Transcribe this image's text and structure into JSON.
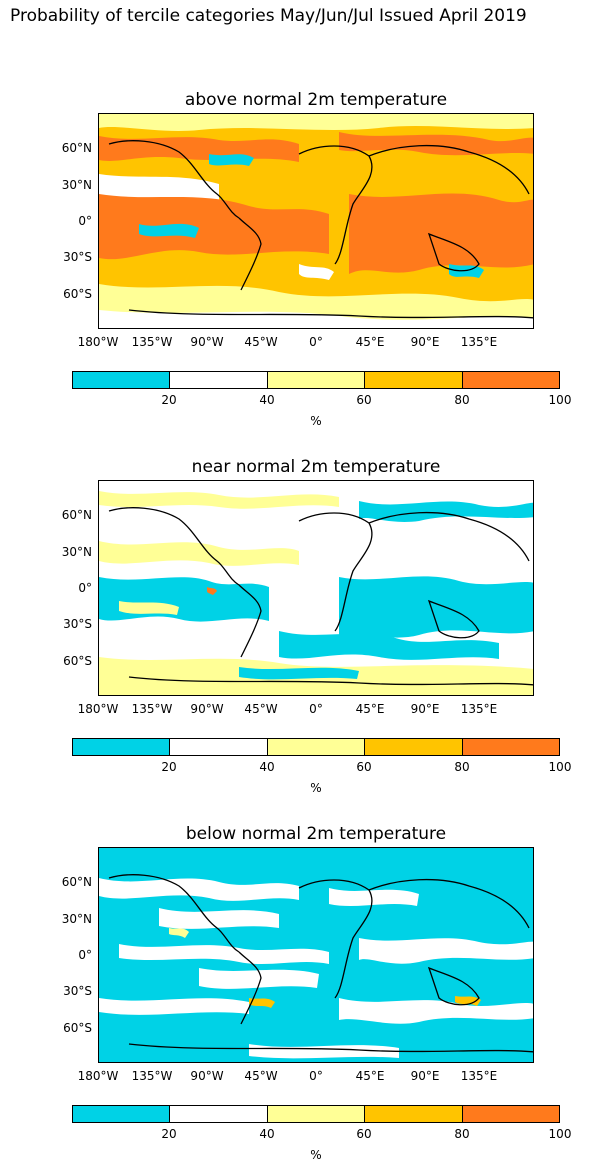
{
  "title": "Probability of tercile categories May/Jun/Jul Issued April 2019",
  "colorbar": {
    "colors": [
      "#00d2e6",
      "#ffffff",
      "#ffff96",
      "#ffc400",
      "#ff7a1c"
    ],
    "ticks": [
      "20",
      "40",
      "60",
      "80",
      "100"
    ],
    "unit": "%"
  },
  "axes": {
    "xticks": [
      "180°W",
      "135°W",
      "90°W",
      "45°W",
      "0°",
      "45°E",
      "90°E",
      "135°E"
    ],
    "yticks": [
      "60°N",
      "30°N",
      "0°",
      "30°S",
      "60°S"
    ]
  },
  "panels": [
    {
      "title": "above normal 2m temperature",
      "dominant": "orange"
    },
    {
      "title": "near normal 2m temperature",
      "dominant": "cyan-yellow"
    },
    {
      "title": "below normal 2m temperature",
      "dominant": "cyan"
    }
  ]
}
